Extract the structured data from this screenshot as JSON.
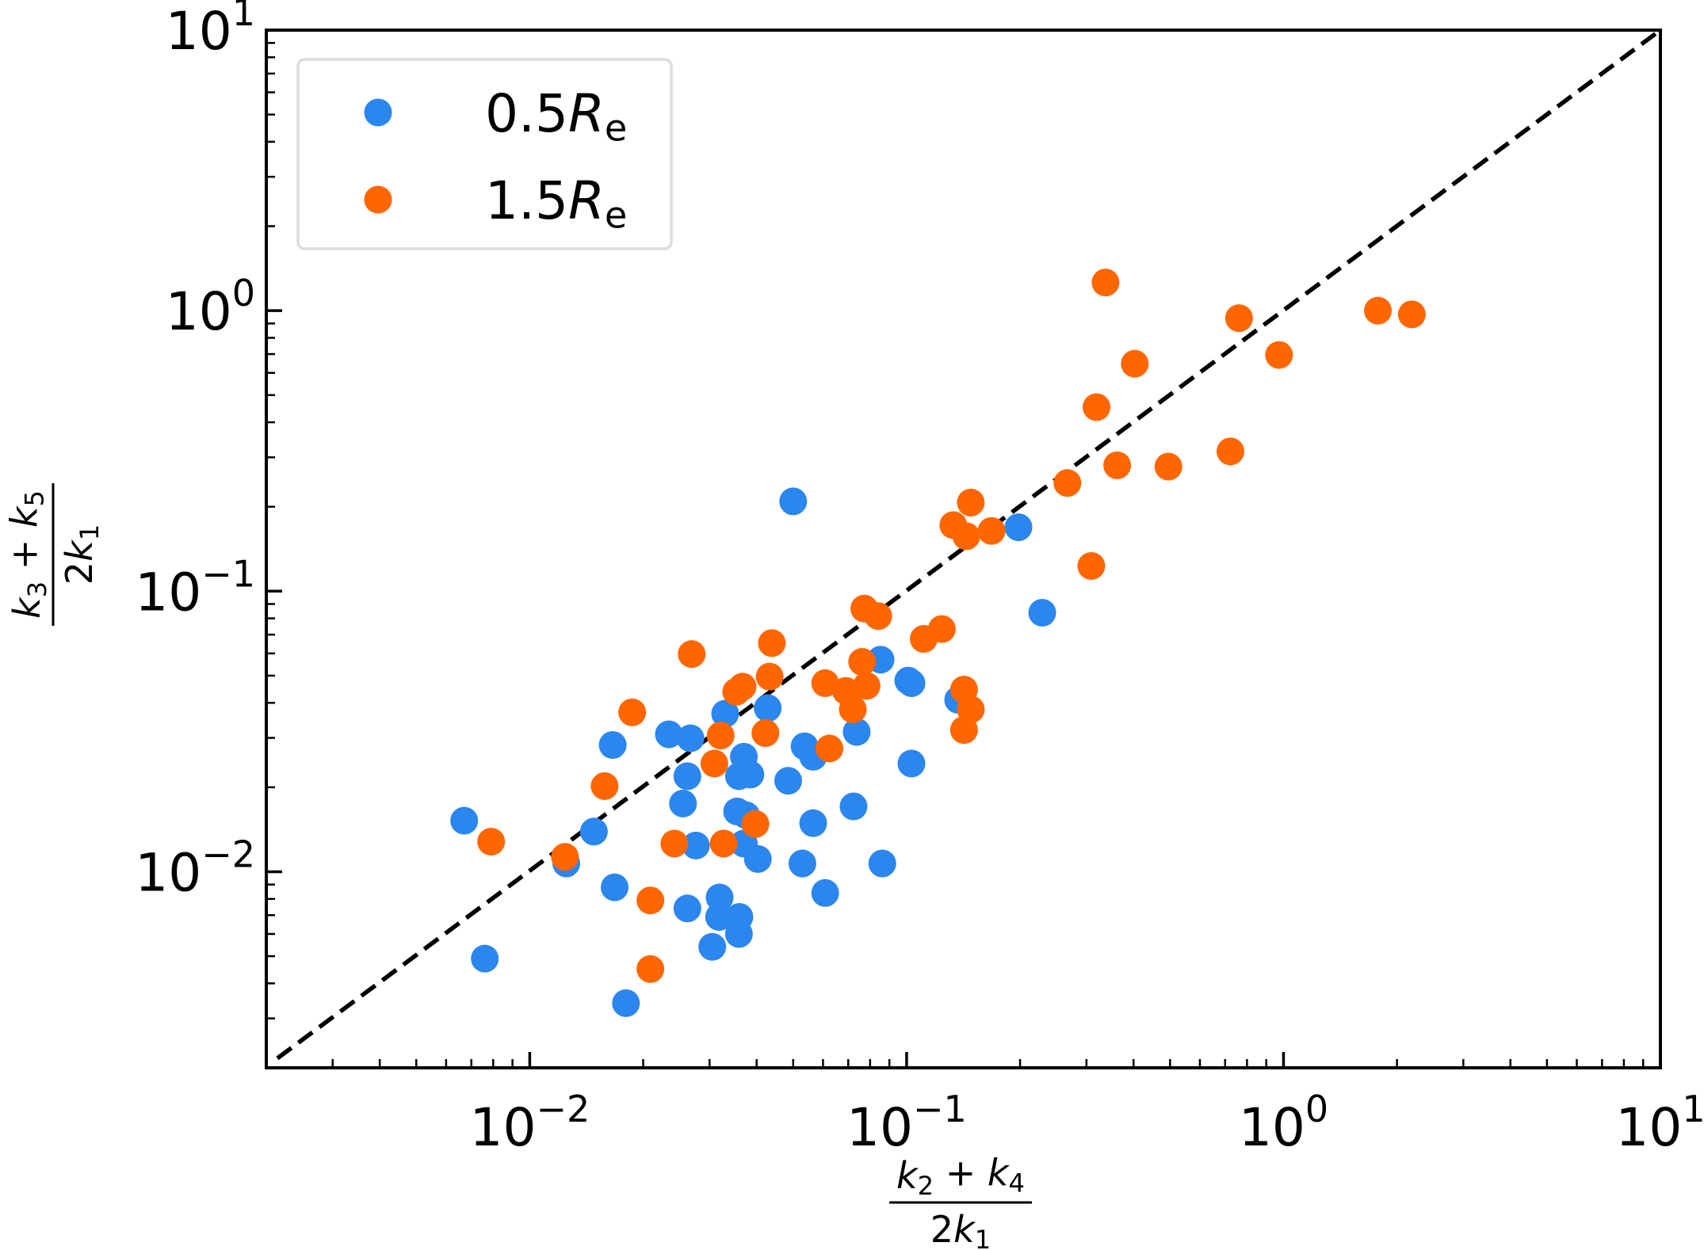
{
  "chart_data": {
    "type": "scatter",
    "xscale": "log",
    "yscale": "log",
    "xlim": [
      0.002,
      10
    ],
    "ylim": [
      0.002,
      10
    ],
    "xlabel": {
      "numerator": "k_2 + k_4",
      "denominator": "2k_1"
    },
    "ylabel": {
      "numerator": "k_3 + k_5",
      "denominator": "2k_1"
    },
    "xticks": [
      {
        "value": 0.01,
        "base": "10",
        "exp": "−2"
      },
      {
        "value": 0.1,
        "base": "10",
        "exp": "−1"
      },
      {
        "value": 1,
        "base": "10",
        "exp": "0"
      },
      {
        "value": 10,
        "base": "10",
        "exp": "1"
      }
    ],
    "yticks": [
      {
        "value": 0.01,
        "base": "10",
        "exp": "−2"
      },
      {
        "value": 0.1,
        "base": "10",
        "exp": "−1"
      },
      {
        "value": 1,
        "base": "10",
        "exp": "0"
      },
      {
        "value": 10,
        "base": "10",
        "exp": "1"
      }
    ],
    "grid": false,
    "legend_position": "top-left",
    "reference_line": {
      "type": "y=x",
      "style": "dashed",
      "color": "#000000"
    },
    "series": [
      {
        "name": "0.5R_e",
        "color": "#2b86ee",
        "points": [
          [
            0.0067,
            0.0152
          ],
          [
            0.0076,
            0.0049
          ],
          [
            0.0125,
            0.0107
          ],
          [
            0.0148,
            0.0139
          ],
          [
            0.0166,
            0.0283
          ],
          [
            0.0168,
            0.0088
          ],
          [
            0.018,
            0.0034
          ],
          [
            0.0234,
            0.0309
          ],
          [
            0.0255,
            0.0175
          ],
          [
            0.0262,
            0.0219
          ],
          [
            0.0262,
            0.0074
          ],
          [
            0.0267,
            0.0299
          ],
          [
            0.0276,
            0.0124
          ],
          [
            0.0305,
            0.0054
          ],
          [
            0.0319,
            0.0081
          ],
          [
            0.0318,
            0.0069
          ],
          [
            0.033,
            0.0366
          ],
          [
            0.0355,
            0.0164
          ],
          [
            0.0359,
            0.006
          ],
          [
            0.036,
            0.0069
          ],
          [
            0.037,
            0.0257
          ],
          [
            0.0359,
            0.0219
          ],
          [
            0.0385,
            0.0222
          ],
          [
            0.0375,
            0.0159
          ],
          [
            0.037,
            0.0126
          ],
          [
            0.0403,
            0.0111
          ],
          [
            0.0428,
            0.0383
          ],
          [
            0.0485,
            0.0211
          ],
          [
            0.05,
            0.209
          ],
          [
            0.0529,
            0.0107
          ],
          [
            0.0536,
            0.028
          ],
          [
            0.0565,
            0.0257
          ],
          [
            0.0565,
            0.0149
          ],
          [
            0.0608,
            0.0084
          ],
          [
            0.0723,
            0.0171
          ],
          [
            0.0737,
            0.0315
          ],
          [
            0.0853,
            0.057
          ],
          [
            0.0862,
            0.0107
          ],
          [
            0.101,
            0.048
          ],
          [
            0.103,
            0.0243
          ],
          [
            0.103,
            0.047
          ],
          [
            0.137,
            0.041
          ],
          [
            0.198,
            0.169
          ],
          [
            0.229,
            0.0838
          ]
        ]
      },
      {
        "name": "1.5R_e",
        "color": "#ff6600",
        "points": [
          [
            0.0079,
            0.0128
          ],
          [
            0.0124,
            0.0113
          ],
          [
            0.0158,
            0.0202
          ],
          [
            0.0187,
            0.037
          ],
          [
            0.0209,
            0.0079
          ],
          [
            0.0209,
            0.0045
          ],
          [
            0.0242,
            0.0126
          ],
          [
            0.0269,
            0.0597
          ],
          [
            0.0309,
            0.0243
          ],
          [
            0.0321,
            0.0306
          ],
          [
            0.0327,
            0.0126
          ],
          [
            0.0353,
            0.0438
          ],
          [
            0.0367,
            0.0457
          ],
          [
            0.0397,
            0.0148
          ],
          [
            0.0422,
            0.0312
          ],
          [
            0.0433,
            0.0496
          ],
          [
            0.0439,
            0.0653
          ],
          [
            0.0608,
            0.047
          ],
          [
            0.0624,
            0.0275
          ],
          [
            0.069,
            0.0441
          ],
          [
            0.072,
            0.0379
          ],
          [
            0.0762,
            0.056
          ],
          [
            0.0783,
            0.046
          ],
          [
            0.0772,
            0.0867
          ],
          [
            0.0841,
            0.0815
          ],
          [
            0.111,
            0.0676
          ],
          [
            0.124,
            0.0733
          ],
          [
            0.133,
            0.172
          ],
          [
            0.142,
            0.032
          ],
          [
            0.142,
            0.0446
          ],
          [
            0.148,
            0.0379
          ],
          [
            0.144,
            0.157
          ],
          [
            0.148,
            0.207
          ],
          [
            0.168,
            0.164
          ],
          [
            0.267,
            0.243
          ],
          [
            0.309,
            0.123
          ],
          [
            0.319,
            0.453
          ],
          [
            0.337,
            1.26
          ],
          [
            0.362,
            0.281
          ],
          [
            0.403,
            0.647
          ],
          [
            0.495,
            0.278
          ],
          [
            0.723,
            0.315
          ],
          [
            0.762,
            0.94
          ],
          [
            0.973,
            0.695
          ],
          [
            1.78,
            1.0
          ],
          [
            2.19,
            0.97
          ]
        ]
      }
    ]
  }
}
